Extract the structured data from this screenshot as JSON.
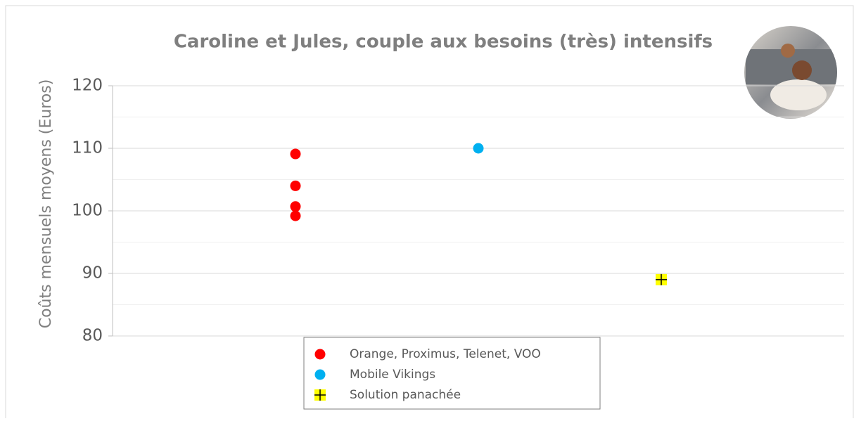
{
  "chart_data": {
    "type": "scatter",
    "title": "Caroline et Jules, couple aux besoins (très) intensifs",
    "y_label": "Coûts mensuels moyens (Euros)",
    "xlim": [
      0,
      4
    ],
    "ylim": [
      80,
      120
    ],
    "yticks": [
      80,
      90,
      100,
      110,
      120
    ],
    "minor_yticks": [
      85,
      95,
      105,
      115
    ],
    "grid": true,
    "legend": "bottom",
    "series": [
      {
        "name": "Orange, Proximus, Telenet, VOO",
        "color": "#ff0000",
        "marker": "circle",
        "x": [
          1,
          1,
          1,
          1
        ],
        "values": [
          109.1,
          104.0,
          100.7,
          99.2
        ]
      },
      {
        "name": "Mobile Vikings",
        "color": "#00b0f0",
        "marker": "circle",
        "x": [
          2
        ],
        "values": [
          110.0
        ]
      },
      {
        "name": "Solution panachée",
        "color": "#ffff00",
        "marker": "plus-square",
        "x": [
          3
        ],
        "values": [
          89.0
        ]
      }
    ]
  }
}
